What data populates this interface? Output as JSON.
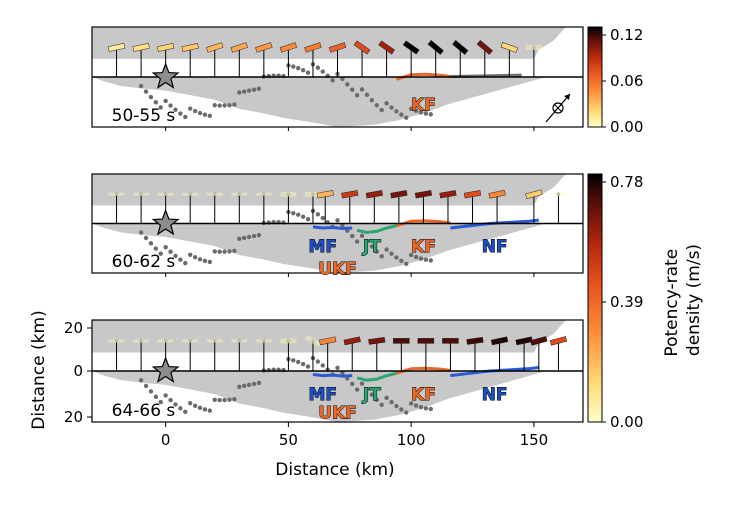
{
  "chart_data": {
    "type": "map-profile",
    "xlabel": "Distance (km)",
    "ylabel": "Distance (km)",
    "xlim": [
      -30,
      170
    ],
    "xticks": [
      0,
      50,
      100,
      150
    ],
    "ylim": [
      -22,
      22
    ],
    "yticks": [
      {
        "value": 20,
        "label": "20"
      },
      {
        "value": 0,
        "label": "0"
      },
      {
        "value": -20,
        "label": "20"
      }
    ],
    "station_x": [
      -20,
      -10,
      0,
      10,
      20,
      30,
      40,
      50,
      60,
      70,
      80,
      90,
      100,
      110,
      120,
      130,
      140,
      150
    ],
    "epicenter_x": 0,
    "panels": [
      {
        "time_label": "50-55 s",
        "cmax": 0.12,
        "colorbar_ticks": [
          "0.12",
          "0.06",
          "0.00"
        ],
        "fault_labels": [
          {
            "text": "KF",
            "x": 105,
            "y": -12,
            "color": "#e8672a"
          }
        ],
        "potency": [
          0.01,
          0.015,
          0.02,
          0.025,
          0.03,
          0.035,
          0.04,
          0.045,
          0.05,
          0.06,
          0.07,
          0.09,
          0.12,
          0.12,
          0.12,
          0.1,
          0.02,
          0.005
        ],
        "angles": [
          -12,
          -12,
          -12,
          -12,
          -18,
          -18,
          -18,
          -18,
          -18,
          -18,
          35,
          35,
          35,
          40,
          40,
          40,
          20,
          0
        ],
        "compass": true
      },
      {
        "time_label": "60-62 s",
        "cmax": 0.78,
        "colorbar_ticks": [
          "0.78",
          "0.39",
          "0.00"
        ],
        "fault_labels": [
          {
            "text": "MF",
            "x": 64,
            "y": -10,
            "color": "#1f4fbf"
          },
          {
            "text": "UKF",
            "x": 70,
            "y": -20,
            "color": "#e8672a"
          },
          {
            "text": "JT",
            "x": 84,
            "y": -10,
            "color": "#2aa673"
          },
          {
            "text": "KF",
            "x": 105,
            "y": -10,
            "color": "#e8672a"
          },
          {
            "text": "NF",
            "x": 134,
            "y": -10,
            "color": "#1f4fbf"
          }
        ],
        "potency": [
          0.02,
          0.02,
          0.02,
          0.02,
          0.02,
          0.02,
          0.02,
          0.03,
          0.03,
          0.2,
          0.5,
          0.6,
          0.65,
          0.65,
          0.6,
          0.45,
          0.3,
          0.15,
          0.02
        ],
        "angles": [
          0,
          0,
          0,
          0,
          0,
          0,
          0,
          0,
          0,
          -10,
          -10,
          -10,
          -10,
          -10,
          -10,
          -10,
          -12,
          -15,
          0
        ],
        "station_x_override": [
          -20,
          -10,
          0,
          10,
          20,
          30,
          40,
          50,
          60,
          65,
          75,
          85,
          95,
          105,
          115,
          125,
          135,
          150,
          160
        ]
      },
      {
        "time_label": "64-66 s",
        "cmax": 0.78,
        "fault_labels": [
          {
            "text": "MF",
            "x": 64,
            "y": -10,
            "color": "#1f4fbf"
          },
          {
            "text": "UKF",
            "x": 70,
            "y": -18,
            "color": "#e8672a"
          },
          {
            "text": "JT",
            "x": 84,
            "y": -10,
            "color": "#2aa673"
          },
          {
            "text": "KF",
            "x": 105,
            "y": -10,
            "color": "#e8672a"
          },
          {
            "text": "NF",
            "x": 134,
            "y": -10,
            "color": "#1f4fbf"
          }
        ],
        "potency": [
          0.02,
          0.02,
          0.02,
          0.02,
          0.02,
          0.02,
          0.02,
          0.03,
          0.03,
          0.3,
          0.6,
          0.65,
          0.7,
          0.7,
          0.7,
          0.72,
          0.75,
          0.75,
          0.7,
          0.45
        ],
        "angles": [
          0,
          0,
          0,
          0,
          0,
          0,
          0,
          0,
          30,
          -12,
          -12,
          -8,
          0,
          0,
          0,
          -8,
          -12,
          -12,
          -15,
          -15
        ],
        "station_x_override": [
          -20,
          -10,
          0,
          10,
          20,
          30,
          40,
          50,
          60,
          66,
          76,
          86,
          96,
          106,
          116,
          126,
          136,
          146,
          152,
          160
        ]
      }
    ],
    "colorbar_label": "Potency-rate\ndensity (m/s)",
    "colorbar_label_lines": [
      "Potency-rate",
      "density (m/s)"
    ],
    "colormap": [
      "#ffffcc",
      "#fed976",
      "#fd8d3c",
      "#e8541e",
      "#b3260f",
      "#5a0e0a",
      "#000000"
    ]
  }
}
